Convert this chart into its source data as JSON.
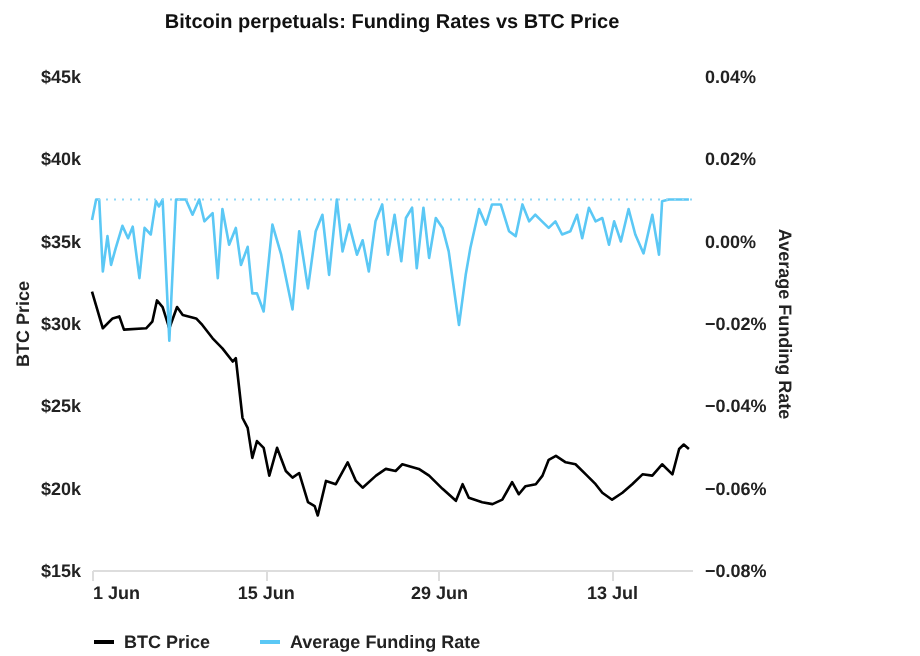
{
  "chart_data": {
    "type": "line",
    "title": "Bitcoin perpetuals: Funding Rates vs BTC Price",
    "ylabel": "BTC Price",
    "y2label": "Average Funding Rate",
    "xlim": [
      "--06-01",
      "--07-19T12:00"
    ],
    "xticks": [
      {
        "value": "--06-01",
        "label": "1 Jun"
      },
      {
        "value": "--06-15",
        "label": "15 Jun"
      },
      {
        "value": "--06-29",
        "label": "29 Jun"
      },
      {
        "value": "--07-13",
        "label": "13 Jul"
      }
    ],
    "ylim": [
      15000,
      45000
    ],
    "yticks": [
      {
        "value": 15000,
        "label": "$15k"
      },
      {
        "value": 20000,
        "label": "$20k"
      },
      {
        "value": 25000,
        "label": "$25k"
      },
      {
        "value": 30000,
        "label": "$30k"
      },
      {
        "value": 35000,
        "label": "$35k"
      },
      {
        "value": 40000,
        "label": "$40k"
      },
      {
        "value": 45000,
        "label": "$45k"
      }
    ],
    "y2lim": [
      -0.08,
      0.04
    ],
    "y2ticks": [
      {
        "value": -0.08,
        "label": "−0.08%"
      },
      {
        "value": -0.06,
        "label": "−0.06%"
      },
      {
        "value": -0.04,
        "label": "−0.04%"
      },
      {
        "value": -0.02,
        "label": "−0.02%"
      },
      {
        "value": 0,
        "label": "0.00%"
      },
      {
        "value": 0.02,
        "label": "0.02%"
      },
      {
        "value": 0.04,
        "label": "0.04%"
      }
    ],
    "grid": false,
    "legend": "bottom",
    "ref_lines": [
      {
        "axis": "y2",
        "value": 0.01,
        "color": "#8fd8f7",
        "line_style": "dotted"
      }
    ],
    "series": [
      {
        "name": "BTC Price",
        "color": "#000000",
        "x": [
          "--06-01T00:00",
          "--06-01T21:00",
          "--06-02T16:00",
          "--06-03T05:00",
          "--06-03T14:00",
          "--06-05T09:00",
          "--06-05T21:00",
          "--06-06T06:00",
          "--06-06T17:00",
          "--06-07T06:00",
          "--06-07T21:00",
          "--06-08T08:00",
          "--06-09T10:00",
          "--06-09T22:00",
          "--06-10T18:00",
          "--06-11T13:00",
          "--06-12T09:00",
          "--06-12T15:00",
          "--06-13T04:00",
          "--06-13T14:00",
          "--06-13T23:00",
          "--06-14T08:00",
          "--06-14T21:00",
          "--06-15T08:00",
          "--06-15T23:00",
          "--06-16T16:00",
          "--06-17T05:00",
          "--06-17T18:00",
          "--06-18T11:00",
          "--06-19T00:00",
          "--06-19T06:00",
          "--06-19T22:00",
          "--06-20T17:00",
          "--06-21T16:00",
          "--06-22T08:00",
          "--06-22T21:00",
          "--06-23T23:00",
          "--06-24T18:00",
          "--06-25T13:00",
          "--06-26T02:00",
          "--06-27T10:00",
          "--06-28T06:00",
          "--06-29T08:00",
          "--06-30T10:00",
          "--06-30T23:00",
          "--07-01T11:00",
          "--07-02T13:00",
          "--07-03T09:00",
          "--07-04T04:00",
          "--07-04T23:00",
          "--07-05T12:00",
          "--07-06T01:00",
          "--07-06T21:00",
          "--07-07T10:00",
          "--07-07T22:00",
          "--07-08T12:00",
          "--07-09T07:00",
          "--07-10T02:00",
          "--07-10T22:00",
          "--07-11T17:00",
          "--07-12T06:00",
          "--07-13T01:00",
          "--07-13T21:00",
          "--07-14T16:00",
          "--07-15T12:00",
          "--07-16T07:00",
          "--07-17T02:00",
          "--07-17T22:00",
          "--07-18T11:00",
          "--07-18T20:00",
          "--07-19T06:00"
        ],
        "values": [
          31900,
          29680,
          30280,
          30400,
          29600,
          29680,
          30080,
          31370,
          30970,
          29680,
          30970,
          30480,
          30280,
          29880,
          29070,
          28460,
          27660,
          27860,
          24230,
          23630,
          21810,
          22830,
          22420,
          20730,
          22420,
          21010,
          20610,
          20890,
          19120,
          18880,
          18310,
          20410,
          20210,
          21540,
          20410,
          20000,
          20730,
          21140,
          21010,
          21420,
          21140,
          20730,
          19930,
          19200,
          20210,
          19390,
          19120,
          19000,
          19270,
          20330,
          19600,
          20090,
          20210,
          20730,
          21690,
          21930,
          21540,
          21420,
          20810,
          20210,
          19690,
          19270,
          19690,
          20210,
          20810,
          20730,
          21420,
          20810,
          22350,
          22620,
          22350
        ]
      },
      {
        "name": "Average Funding Rate",
        "color": "#5bc8f5",
        "axis": "y2",
        "x": [
          "--06-01T00:00",
          "--06-01T08:00",
          "--06-01T14:00",
          "--06-01T21:00",
          "--06-02T06:00",
          "--06-02T13:00",
          "--06-02T22:00",
          "--06-03T11:00",
          "--06-03T22:00",
          "--06-04T07:00",
          "--06-04T20:00",
          "--06-05T06:00",
          "--06-05T18:00",
          "--06-06T04:00",
          "--06-06T10:00",
          "--06-06T17:00",
          "--06-07T06:00",
          "--06-07T19:00",
          "--06-08T14:00",
          "--06-09T03:00",
          "--06-09T16:00",
          "--06-10T02:00",
          "--06-10T18:00",
          "--06-11T04:00",
          "--06-11T13:00",
          "--06-12T02:00",
          "--06-12T15:00",
          "--06-13T01:00",
          "--06-13T14:00",
          "--06-13T23:00",
          "--06-14T08:00",
          "--06-14T21:00",
          "--06-15T14:00",
          "--06-16T07:00",
          "--06-17T05:00",
          "--06-17T18:00",
          "--06-18T11:00",
          "--06-19T02:00",
          "--06-19T15:00",
          "--06-20T04:00",
          "--06-20T19:00",
          "--06-21T06:00",
          "--06-21T19:00",
          "--06-22T10:00",
          "--06-22T21:00",
          "--06-23T09:00",
          "--06-23T22:00",
          "--06-24T11:00",
          "--06-24T22:00",
          "--06-25T11:00",
          "--06-26T00:00",
          "--06-26T09:00",
          "--06-26T21:00",
          "--06-27T06:00",
          "--06-27T19:00",
          "--06-28T06:00",
          "--06-28T19:00",
          "--06-29T08:00",
          "--06-29T20:00",
          "--06-30T16:00",
          "--07-01T05:00",
          "--07-01T14:00",
          "--07-02T07:00",
          "--07-02T20:00",
          "--07-03T08:00",
          "--07-04T01:00",
          "--07-04T17:00",
          "--07-05T06:00",
          "--07-05T19:00",
          "--07-06T08:00",
          "--07-06T20:00",
          "--07-07T09:00",
          "--07-07T22:00",
          "--07-08T11:00",
          "--07-09T00:00",
          "--07-09T16:00",
          "--07-10T05:00",
          "--07-10T15:00",
          "--07-11T04:00",
          "--07-11T17:00",
          "--07-12T06:00",
          "--07-12T19:00",
          "--07-13T05:00",
          "--07-13T18:00",
          "--07-14T09:00",
          "--07-14T22:00",
          "--07-15T14:00",
          "--07-16T07:00",
          "--07-16T20:00",
          "--07-17T02:00",
          "--07-17T15:00",
          "--07-19T06:00"
        ],
        "values": [
          0.005,
          0.01,
          0.01,
          -0.0075,
          0.0011,
          -0.0059,
          -0.0018,
          0.0036,
          0.0006,
          0.0034,
          -0.0091,
          0.0031,
          0.0015,
          0.0096,
          0.0083,
          0.01,
          -0.0243,
          0.01,
          0.01,
          0.0063,
          0.01,
          0.0047,
          0.0067,
          -0.0091,
          0.0077,
          -0.001,
          0.0031,
          -0.0059,
          -0.0015,
          -0.0128,
          -0.0128,
          -0.0172,
          0.0039,
          -0.0034,
          -0.0167,
          0.0023,
          -0.0116,
          0.0023,
          0.0063,
          -0.0083,
          0.01,
          -0.0026,
          0.0039,
          -0.0034,
          0.0001,
          -0.0075,
          0.0047,
          0.0088,
          -0.0034,
          0.0063,
          -0.005,
          0.0055,
          0.008,
          -0.0067,
          0.008,
          -0.0042,
          0.0055,
          0.0031,
          -0.0026,
          -0.0205,
          -0.0083,
          -0.0018,
          0.0077,
          0.0039,
          0.0088,
          0.0088,
          0.0023,
          0.0011,
          0.0088,
          0.0047,
          0.0063,
          0.0047,
          0.0031,
          0.0047,
          0.0015,
          0.0023,
          0.0063,
          0.0006,
          0.008,
          0.0047,
          0.0055,
          -0.001,
          0.0047,
          -0.0002,
          0.0077,
          0.0015,
          -0.0031,
          0.0063,
          -0.0034,
          0.0096,
          0.01,
          0.01
        ]
      }
    ]
  }
}
